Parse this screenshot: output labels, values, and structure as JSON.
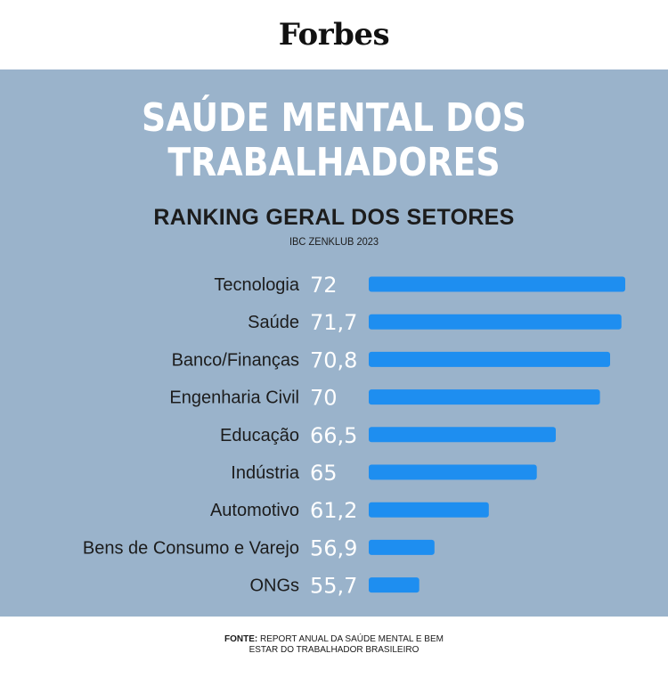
{
  "header": {
    "logo": "Forbes"
  },
  "chart_data": {
    "type": "bar",
    "orientation": "horizontal",
    "title": "SAÚDE MENTAL DOS\nTRABALHADORES",
    "subtitle": "RANKING GERAL DOS SETORES",
    "source_label": "IBC ZENKLUB 2023",
    "categories": [
      "Tecnologia",
      "Saúde",
      "Banco/Finanças",
      "Engenharia Civil",
      "Educação",
      "Indústria",
      "Automotivo",
      "Bens de Consumo e Varejo",
      "ONGs"
    ],
    "values": [
      72,
      71.7,
      70.8,
      70,
      66.5,
      65,
      61.2,
      56.9,
      55.7
    ],
    "value_labels": [
      "72",
      "71,7",
      "70,8",
      "70",
      "66,5",
      "65",
      "61,2",
      "56,9",
      "55,7"
    ],
    "bar_color": "#1e8ef0",
    "background_color": "#9ab3cb"
  },
  "footer": {
    "label": "FONTE:",
    "text_line1": "REPORT ANUAL DA SAÚDE MENTAL E BEM",
    "text_line2": "ESTAR DO TRABALHADOR BRASILEIRO"
  }
}
